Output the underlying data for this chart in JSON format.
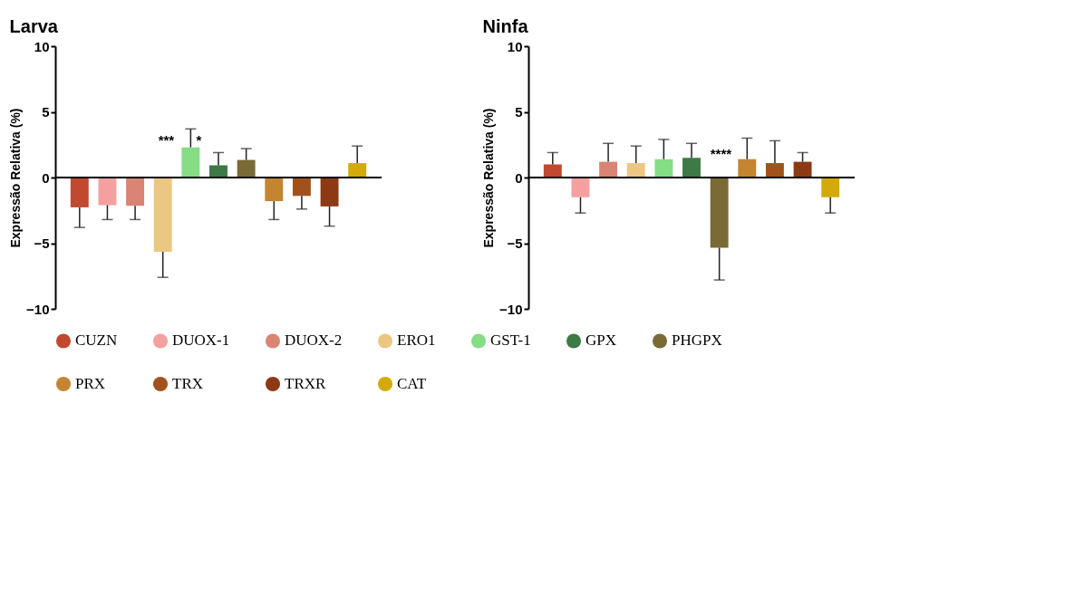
{
  "chart_data": [
    {
      "type": "bar",
      "title": "Larva",
      "ylabel": "Expressão Relativa (%)",
      "categories": [
        null
      ],
      "series": [
        {
          "name": "CUZN",
          "color": "#c0492f",
          "values": [
            -2.27
          ],
          "errors": [
            [
              -3.8,
              -2.27
            ]
          ]
        },
        {
          "name": "DUOX-1",
          "color": "#f4a0a0",
          "values": [
            -2.1
          ],
          "errors": [
            [
              -3.2,
              -2.1
            ]
          ]
        },
        {
          "name": "DUOX-2",
          "color": "#d98474",
          "values": [
            -2.15
          ],
          "errors": [
            [
              -3.2,
              -2.15
            ]
          ]
        },
        {
          "name": "ERO1",
          "color": "#ecc781",
          "values": [
            -5.65
          ],
          "errors": [
            [
              -7.6,
              -5.65
            ]
          ]
        },
        {
          "name": "GST-1",
          "color": "#86dd86",
          "values": [
            2.3
          ],
          "errors": [
            [
              2.3,
              3.7
            ]
          ]
        },
        {
          "name": "GPX",
          "color": "#3e7a45",
          "values": [
            0.93
          ],
          "errors": [
            [
              0.93,
              1.9
            ]
          ]
        },
        {
          "name": "PHGPX",
          "color": "#7a6a35",
          "values": [
            1.34
          ],
          "errors": [
            [
              1.34,
              2.2
            ]
          ]
        },
        {
          "name": "PRX",
          "color": "#c48531",
          "values": [
            -1.8
          ],
          "errors": [
            [
              -3.2,
              -1.8
            ]
          ]
        },
        {
          "name": "TRX",
          "color": "#a1521c",
          "values": [
            -1.4
          ],
          "errors": [
            [
              -2.4,
              -1.4
            ]
          ]
        },
        {
          "name": "TRXR",
          "color": "#8b3a14",
          "values": [
            -2.2
          ],
          "errors": [
            [
              -3.7,
              -2.2
            ]
          ]
        },
        {
          "name": "CAT",
          "color": "#d4aa0a",
          "values": [
            1.1
          ],
          "errors": [
            [
              1.1,
              2.4
            ]
          ]
        }
      ],
      "ylim": [
        -10,
        10
      ],
      "yticks": [
        -10,
        -5,
        0,
        5,
        10
      ],
      "tick_labels": "y",
      "legend": "bottom",
      "annotations": [
        "***",
        "*"
      ]
    },
    {
      "type": "bar",
      "title": "Ninfa",
      "ylabel": "Expressão Relativa (%)",
      "categories": [
        null
      ],
      "series": [
        {
          "name": "CUZN",
          "color": "#c0492f",
          "values": [
            1.0
          ],
          "errors": [
            [
              1.0,
              1.9
            ]
          ]
        },
        {
          "name": "DUOX-1",
          "color": "#f4a0a0",
          "values": [
            -1.5
          ],
          "errors": [
            [
              -2.7,
              -1.5
            ]
          ]
        },
        {
          "name": "DUOX-2",
          "color": "#d98474",
          "values": [
            1.2
          ],
          "errors": [
            [
              1.2,
              2.6
            ]
          ]
        },
        {
          "name": "ERO1",
          "color": "#ecc781",
          "values": [
            1.1
          ],
          "errors": [
            [
              1.1,
              2.4
            ]
          ]
        },
        {
          "name": "GST-1",
          "color": "#86dd86",
          "values": [
            1.4
          ],
          "errors": [
            [
              1.4,
              2.9
            ]
          ]
        },
        {
          "name": "GPX",
          "color": "#3e7a45",
          "values": [
            1.5
          ],
          "errors": [
            [
              1.5,
              2.6
            ]
          ]
        },
        {
          "name": "PHGPX",
          "color": "#7a6a35",
          "values": [
            -5.34
          ],
          "errors": [
            [
              -7.8,
              -5.34
            ]
          ]
        },
        {
          "name": "PRX",
          "color": "#c48531",
          "values": [
            1.4
          ],
          "errors": [
            [
              1.4,
              3.0
            ]
          ]
        },
        {
          "name": "TRX",
          "color": "#a1521c",
          "values": [
            1.1
          ],
          "errors": [
            [
              1.1,
              2.8
            ]
          ]
        },
        {
          "name": "TRXR",
          "color": "#8b3a14",
          "values": [
            1.2
          ],
          "errors": [
            [
              1.2,
              1.9
            ]
          ]
        },
        {
          "name": "CAT",
          "color": "#d4aa0a",
          "values": [
            -1.5
          ],
          "errors": [
            [
              -2.7,
              -1.5
            ]
          ]
        }
      ],
      "ylim": [
        -10,
        10
      ],
      "yticks": [
        -10,
        -5,
        0,
        5,
        10
      ],
      "tick_labels": "y",
      "legend": "bottom",
      "annotations": [
        "****"
      ]
    }
  ]
}
